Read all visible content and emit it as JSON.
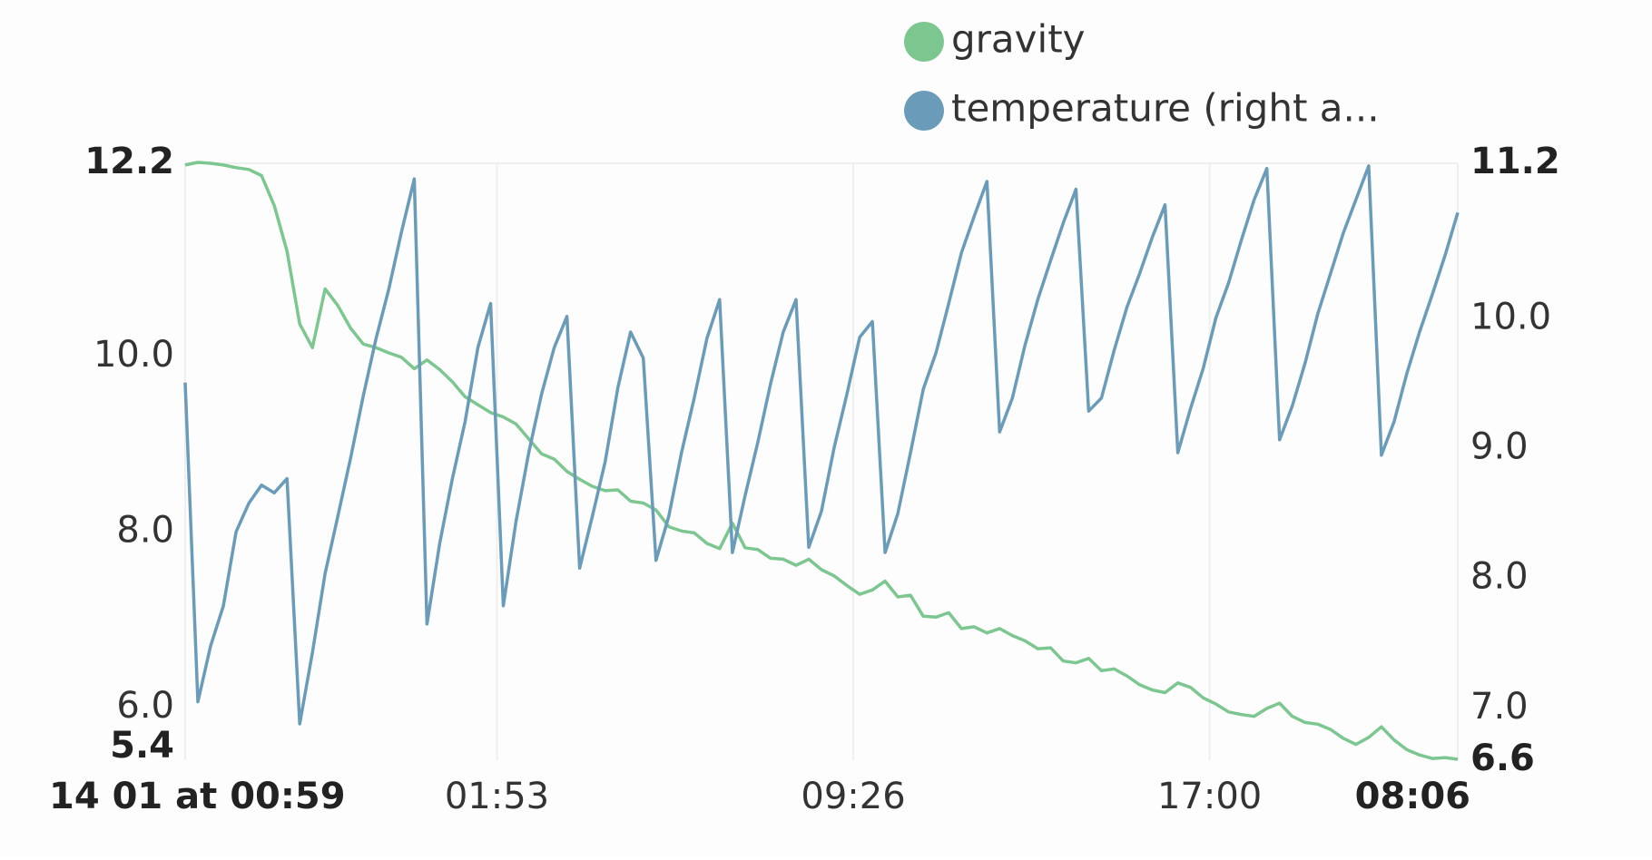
{
  "chart_data": {
    "type": "line",
    "legend": "top",
    "grid": true,
    "xlim": [
      0,
      100
    ],
    "xticks": [
      {
        "value": 0,
        "label": "14 01 at 00:59"
      },
      {
        "value": 24.5,
        "label": "01:53"
      },
      {
        "value": 52.5,
        "label": "09:26"
      },
      {
        "value": 80.5,
        "label": "17:00"
      },
      {
        "value": 100,
        "label": "08:06"
      }
    ],
    "ylim": [
      5.4,
      12.2
    ],
    "yticks": [
      12.2,
      {
        "value": 10.0,
        "label": "10.0"
      },
      {
        "value": 8.0,
        "label": "8.0"
      },
      {
        "value": 6.0,
        "label": "6.0"
      },
      5.4
    ],
    "y2lim": [
      6.6,
      11.2
    ],
    "y2ticks": [
      11.2,
      {
        "value": 10.0,
        "label": "10.0"
      },
      {
        "value": 9.0,
        "label": "9.0"
      },
      {
        "value": 8.0,
        "label": "8.0"
      },
      {
        "value": 7.0,
        "label": "7.0"
      },
      6.6
    ],
    "series": [
      {
        "name": "gravity",
        "color": "#7cc68f",
        "axis": "y",
        "values": [
          12.18,
          12.21,
          12.2,
          12.18,
          12.15,
          12.13,
          12.06,
          11.72,
          11.2,
          10.37,
          10.1,
          10.77,
          10.58,
          10.32,
          10.14,
          10.1,
          10.04,
          9.99,
          9.86,
          9.96,
          9.85,
          9.71,
          9.54,
          9.45,
          9.36,
          9.31,
          9.23,
          9.06,
          8.89,
          8.83,
          8.69,
          8.6,
          8.52,
          8.47,
          8.48,
          8.35,
          8.33,
          8.25,
          8.06,
          8.01,
          7.99,
          7.87,
          7.81,
          8.1,
          7.82,
          7.8,
          7.7,
          7.69,
          7.62,
          7.69,
          7.57,
          7.5,
          7.39,
          7.29,
          7.34,
          7.44,
          7.26,
          7.28,
          7.04,
          7.03,
          7.08,
          6.9,
          6.92,
          6.85,
          6.9,
          6.82,
          6.76,
          6.67,
          6.68,
          6.53,
          6.51,
          6.56,
          6.42,
          6.44,
          6.36,
          6.26,
          6.2,
          6.17,
          6.28,
          6.23,
          6.11,
          6.04,
          5.95,
          5.92,
          5.9,
          5.99,
          6.05,
          5.9,
          5.83,
          5.81,
          5.75,
          5.65,
          5.58,
          5.66,
          5.78,
          5.63,
          5.52,
          5.46,
          5.42,
          5.43,
          5.41
        ]
      },
      {
        "name": "temperature (right a...",
        "color": "#6a9bb8",
        "axis": "y2",
        "values": [
          9.51,
          7.05,
          7.48,
          7.79,
          8.36,
          8.58,
          8.72,
          8.66,
          8.77,
          6.88,
          7.43,
          8.04,
          8.48,
          8.93,
          9.41,
          9.85,
          10.23,
          10.67,
          11.08,
          7.65,
          8.27,
          8.77,
          9.21,
          9.78,
          10.12,
          7.79,
          8.44,
          8.97,
          9.42,
          9.78,
          10.02,
          8.08,
          8.48,
          8.9,
          9.47,
          9.9,
          9.7,
          8.14,
          8.48,
          8.97,
          9.39,
          9.85,
          10.15,
          8.2,
          8.64,
          9.05,
          9.5,
          9.9,
          10.15,
          8.24,
          8.52,
          9.01,
          9.42,
          9.86,
          9.98,
          8.2,
          8.5,
          8.97,
          9.46,
          9.74,
          10.12,
          10.51,
          10.79,
          11.06,
          9.13,
          9.39,
          9.8,
          10.15,
          10.45,
          10.74,
          11.0,
          9.29,
          9.39,
          9.76,
          10.09,
          10.35,
          10.63,
          10.88,
          8.97,
          9.31,
          9.62,
          10.01,
          10.28,
          10.61,
          10.92,
          11.16,
          9.07,
          9.33,
          9.66,
          10.04,
          10.35,
          10.66,
          10.92,
          11.18,
          8.95,
          9.21,
          9.58,
          9.9,
          10.19,
          10.49,
          10.82
        ]
      }
    ]
  }
}
